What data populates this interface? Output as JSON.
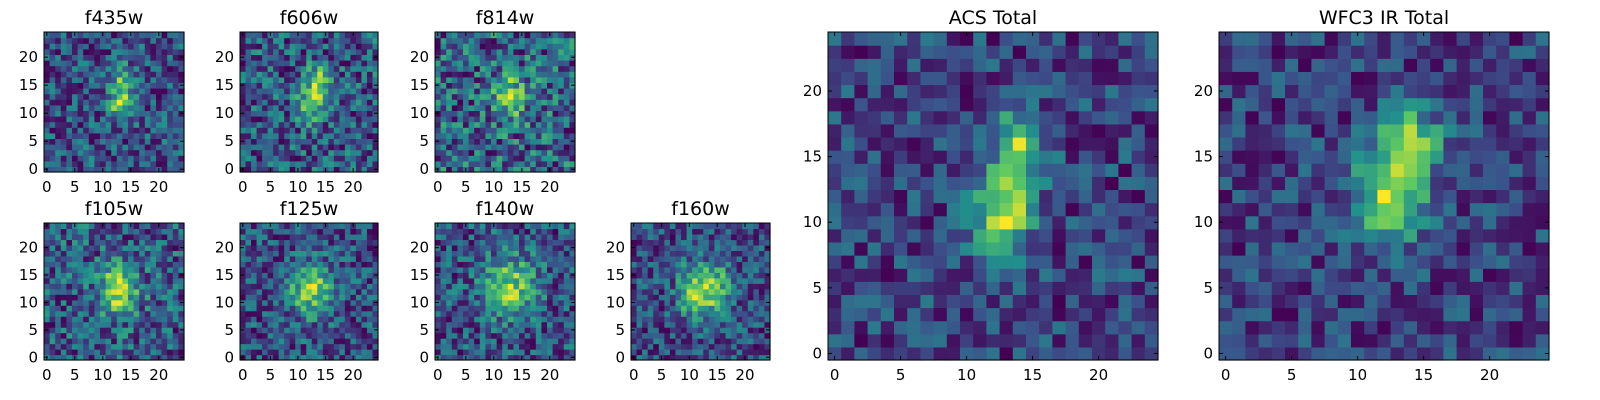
{
  "figure": {
    "colormap": [
      "#440154",
      "#3b528b",
      "#21918c",
      "#5ec962",
      "#fde725"
    ],
    "frame_color": "#000000"
  },
  "chart_data": [
    {
      "type": "heatmap",
      "title": "f435w",
      "grid_size": 25,
      "noise": 0.55,
      "seed": 11,
      "blobs": [
        {
          "x": 13.5,
          "y": 15.5,
          "sx": 1.4,
          "sy": 2.2,
          "amp": 0.9
        },
        {
          "x": 13,
          "y": 11.5,
          "sx": 1.6,
          "sy": 2.0,
          "amp": 0.85
        }
      ],
      "xticks": [
        0,
        5,
        10,
        15,
        20
      ],
      "yticks": [
        0,
        5,
        10,
        15,
        20
      ],
      "xlim": [
        0,
        25
      ],
      "ylim": [
        0,
        25
      ]
    },
    {
      "type": "heatmap",
      "title": "f606w",
      "grid_size": 25,
      "noise": 0.55,
      "seed": 23,
      "blobs": [
        {
          "x": 13.5,
          "y": 15.5,
          "sx": 1.4,
          "sy": 2.2,
          "amp": 0.95
        },
        {
          "x": 12.5,
          "y": 11.5,
          "sx": 1.7,
          "sy": 2.2,
          "amp": 0.9
        }
      ],
      "xticks": [
        0,
        5,
        10,
        15,
        20
      ],
      "yticks": [
        0,
        5,
        10,
        15,
        20
      ],
      "xlim": [
        0,
        25
      ],
      "ylim": [
        0,
        25
      ]
    },
    {
      "type": "heatmap",
      "title": "f814w",
      "grid_size": 25,
      "noise": 0.5,
      "seed": 37,
      "blobs": [
        {
          "x": 13,
          "y": 13,
          "sx": 2.0,
          "sy": 3.0,
          "amp": 0.7
        }
      ],
      "xticks": [
        0,
        5,
        10,
        15,
        20
      ],
      "yticks": [
        0,
        5,
        10,
        15,
        20
      ],
      "xlim": [
        0,
        25
      ],
      "ylim": [
        0,
        25
      ]
    },
    {
      "type": "heatmap",
      "title": "f105w",
      "grid_size": 25,
      "noise": 0.4,
      "seed": 41,
      "blobs": [
        {
          "x": 13,
          "y": 12.5,
          "sx": 2.2,
          "sy": 3.2,
          "amp": 0.95
        }
      ],
      "xticks": [
        0,
        5,
        10,
        15,
        20
      ],
      "yticks": [
        0,
        5,
        10,
        15,
        20
      ],
      "xlim": [
        0,
        25
      ],
      "ylim": [
        0,
        25
      ]
    },
    {
      "type": "heatmap",
      "title": "f125w",
      "grid_size": 25,
      "noise": 0.45,
      "seed": 53,
      "blobs": [
        {
          "x": 12.5,
          "y": 12.5,
          "sx": 2.8,
          "sy": 3.5,
          "amp": 0.95
        }
      ],
      "xticks": [
        0,
        5,
        10,
        15,
        20
      ],
      "yticks": [
        0,
        5,
        10,
        15,
        20
      ],
      "xlim": [
        0,
        25
      ],
      "ylim": [
        0,
        25
      ]
    },
    {
      "type": "heatmap",
      "title": "f140w",
      "grid_size": 25,
      "noise": 0.45,
      "seed": 67,
      "blobs": [
        {
          "x": 13,
          "y": 13,
          "sx": 3.0,
          "sy": 3.8,
          "amp": 0.95
        }
      ],
      "xticks": [
        0,
        5,
        10,
        15,
        20
      ],
      "yticks": [
        0,
        5,
        10,
        15,
        20
      ],
      "xlim": [
        0,
        25
      ],
      "ylim": [
        0,
        25
      ]
    },
    {
      "type": "heatmap",
      "title": "f160w",
      "grid_size": 25,
      "noise": 0.4,
      "seed": 79,
      "blobs": [
        {
          "x": 11.5,
          "y": 12,
          "sx": 2.5,
          "sy": 3.5,
          "amp": 0.95
        },
        {
          "x": 15,
          "y": 13,
          "sx": 1.8,
          "sy": 3.0,
          "amp": 0.6
        }
      ],
      "xticks": [
        0,
        5,
        10,
        15,
        20
      ],
      "yticks": [
        0,
        5,
        10,
        15,
        20
      ],
      "xlim": [
        0,
        25
      ],
      "ylim": [
        0,
        25
      ]
    },
    {
      "type": "heatmap",
      "title": "ACS Total",
      "grid_size": 25,
      "noise": 0.32,
      "seed": 97,
      "blobs": [
        {
          "x": 14,
          "y": 16,
          "sx": 1.3,
          "sy": 1.8,
          "amp": 0.95
        },
        {
          "x": 13,
          "y": 11.5,
          "sx": 1.5,
          "sy": 2.0,
          "amp": 0.95
        },
        {
          "x": 12,
          "y": 9,
          "sx": 1.5,
          "sy": 1.5,
          "amp": 0.5
        }
      ],
      "xticks": [
        0,
        5,
        10,
        15,
        20
      ],
      "yticks": [
        0,
        5,
        10,
        15,
        20
      ],
      "xlim": [
        0,
        25
      ],
      "ylim": [
        0,
        25
      ]
    },
    {
      "type": "heatmap",
      "title": "WFC3 IR Total",
      "grid_size": 25,
      "noise": 0.28,
      "seed": 113,
      "blobs": [
        {
          "x": 12.5,
          "y": 12,
          "sx": 2.0,
          "sy": 2.5,
          "amp": 0.95
        },
        {
          "x": 14,
          "y": 16.5,
          "sx": 1.5,
          "sy": 1.6,
          "amp": 0.85
        }
      ],
      "xticks": [
        0,
        5,
        10,
        15,
        20
      ],
      "yticks": [
        0,
        5,
        10,
        15,
        20
      ],
      "xlim": [
        0,
        25
      ],
      "ylim": [
        0,
        25
      ]
    }
  ]
}
